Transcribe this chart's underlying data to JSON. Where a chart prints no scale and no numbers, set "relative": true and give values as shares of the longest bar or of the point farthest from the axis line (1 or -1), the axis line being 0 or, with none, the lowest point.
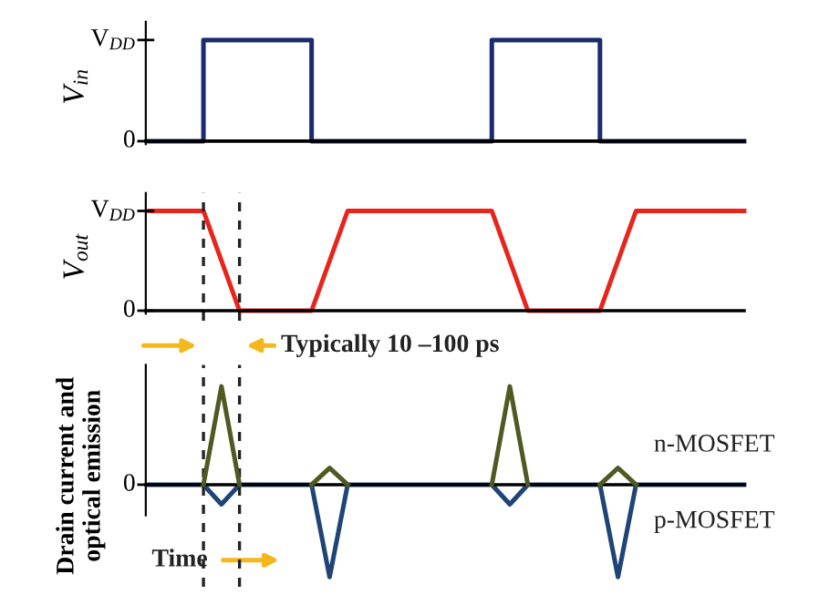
{
  "chart_data": [
    {
      "type": "step",
      "relative": true,
      "ylabel": "V$_{in}$",
      "categories": [
        null,
        null,
        null,
        null,
        null,
        null,
        null,
        null,
        null,
        null,
        null,
        null,
        null,
        null,
        null,
        null,
        null,
        null,
        null,
        null,
        null,
        null,
        null,
        null,
        null,
        null,
        null,
        null,
        null,
        null,
        null,
        null,
        null,
        null
      ],
      "grid": false,
      "annotations": [
        "0",
        "V$_{DD}$"
      ],
      "series": [
        {
          "color": "#1c2a6e",
          "values": [
            0,
            0,
            0,
            1,
            1,
            1,
            1,
            1,
            1,
            0,
            0,
            0,
            0,
            0,
            0,
            0,
            0,
            0,
            0,
            1,
            1,
            1,
            1,
            1,
            1,
            0,
            0,
            0,
            0,
            0,
            0,
            0,
            0,
            0
          ]
        }
      ]
    },
    {
      "type": "line",
      "relative": true,
      "ylabel": "V$_{out}$",
      "categories": [
        null,
        null,
        null,
        null,
        null,
        null,
        null,
        null,
        null,
        null,
        null,
        null,
        null,
        null,
        null,
        null,
        null,
        null,
        null,
        null,
        null,
        null,
        null,
        null,
        null,
        null,
        null,
        null,
        null,
        null,
        null,
        null,
        null,
        null
      ],
      "grid": false,
      "annotations": [
        "0",
        "V$_{DD}$",
        "Typically 10 –100 ps"
      ],
      "series": [
        {
          "color": "#e8251c",
          "values": [
            1,
            1,
            1,
            1,
            0.5,
            0,
            0,
            0,
            0,
            0,
            0.5,
            1,
            1,
            1,
            1,
            1,
            1,
            1,
            1,
            1,
            0.5,
            0,
            0,
            0,
            0,
            0,
            0.5,
            1,
            1,
            1,
            1,
            1,
            1,
            1
          ]
        }
      ]
    },
    {
      "type": "line",
      "relative": true,
      "ylabel": "Drain current and\noptical emission",
      "categories": [
        null,
        null,
        null,
        null,
        null,
        null,
        null,
        null,
        null,
        null,
        null,
        null,
        null,
        null,
        null,
        null,
        null,
        null,
        null,
        null,
        null,
        null,
        null,
        null,
        null,
        null,
        null,
        null,
        null,
        null,
        null,
        null,
        null,
        null
      ],
      "grid": false,
      "annotations": [
        "0",
        "Time"
      ],
      "series": [
        {
          "name": "p-MOSFET",
          "color": "#1f4476",
          "values": [
            0,
            0,
            0,
            0,
            -0.2,
            0,
            0,
            0,
            0,
            0,
            -0.94,
            0,
            0,
            0,
            0,
            0,
            0,
            0,
            0,
            0,
            -0.2,
            0,
            0,
            0,
            0,
            0,
            -0.94,
            0,
            0,
            0,
            0,
            0,
            0,
            0
          ]
        },
        {
          "name": "n-MOSFET",
          "color": "#4e5a22",
          "values": [
            null,
            null,
            null,
            0,
            1,
            0,
            null,
            null,
            null,
            0,
            0.17,
            0,
            null,
            null,
            null,
            null,
            null,
            null,
            null,
            0,
            1,
            0,
            null,
            null,
            null,
            0,
            0.17,
            0,
            null,
            null,
            null,
            null,
            null,
            null
          ]
        }
      ]
    }
  ]
}
